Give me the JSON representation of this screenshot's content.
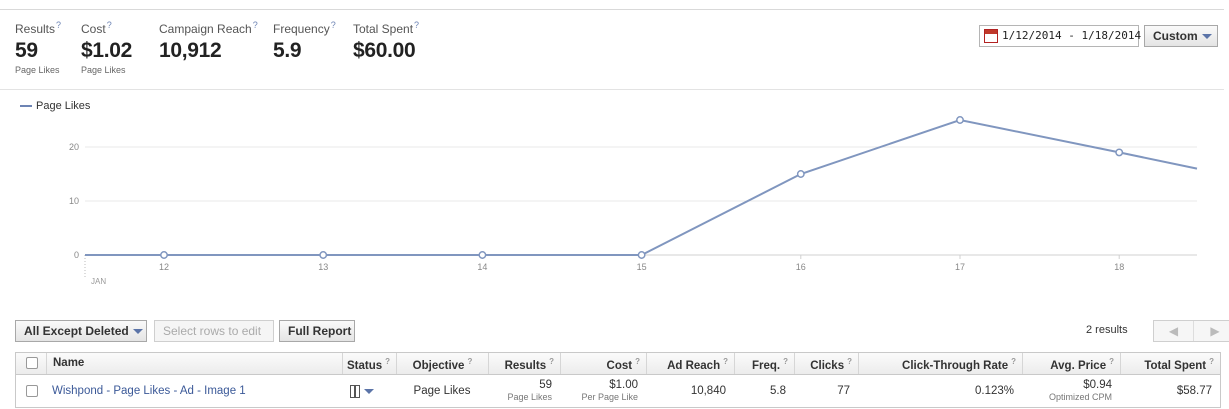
{
  "summary": [
    {
      "label": "Results",
      "value": "59",
      "sub": "Page Likes"
    },
    {
      "label": "Cost",
      "value": "$1.02",
      "sub": "Page Likes"
    },
    {
      "label": "Campaign Reach",
      "value": "10,912",
      "sub": ""
    },
    {
      "label": "Frequency",
      "value": "5.9",
      "sub": ""
    },
    {
      "label": "Total Spent",
      "value": "$60.00",
      "sub": ""
    }
  ],
  "help_mark": "?",
  "date_range": "1/12/2014 - 1/18/2014",
  "range_button": "Custom",
  "chart_data": {
    "type": "line",
    "series": [
      {
        "name": "Page Likes",
        "values": [
          0,
          0,
          0,
          0,
          15,
          25,
          19,
          16
        ]
      }
    ],
    "x": [
      12,
      13,
      14,
      15,
      16,
      17,
      18,
      18.5
    ],
    "x_tick_labels": [
      "12",
      "13",
      "14",
      "15",
      "16",
      "17",
      "18"
    ],
    "x_sub_label": "JAN",
    "y_ticks": [
      "0",
      "10",
      "20"
    ],
    "ylim": [
      0,
      27
    ],
    "color": "#8096bf",
    "grid": true,
    "legend": "top-left"
  },
  "toolbar": {
    "filter": "All Except Deleted",
    "edit": "Select rows to edit",
    "report": "Full Report",
    "results_count": "2 results",
    "prev": "◀",
    "next": "▶"
  },
  "table": {
    "headers": [
      "Name",
      "Status",
      "Objective",
      "Results",
      "Cost",
      "Ad Reach",
      "Freq.",
      "Clicks",
      "Click-Through Rate",
      "Avg. Price",
      "Total Spent"
    ],
    "row": {
      "name": "Wishpond - Page Likes - Ad - Image 1",
      "objective": "Page Likes",
      "results": "59",
      "results_sub": "Page Likes",
      "cost": "$1.00",
      "cost_sub": "Per Page Like",
      "reach": "10,840",
      "freq": "5.8",
      "clicks": "77",
      "ctr": "0.123%",
      "avg_price": "$0.94",
      "avg_price_sub": "Optimized CPM",
      "total_spent": "$58.77"
    }
  }
}
